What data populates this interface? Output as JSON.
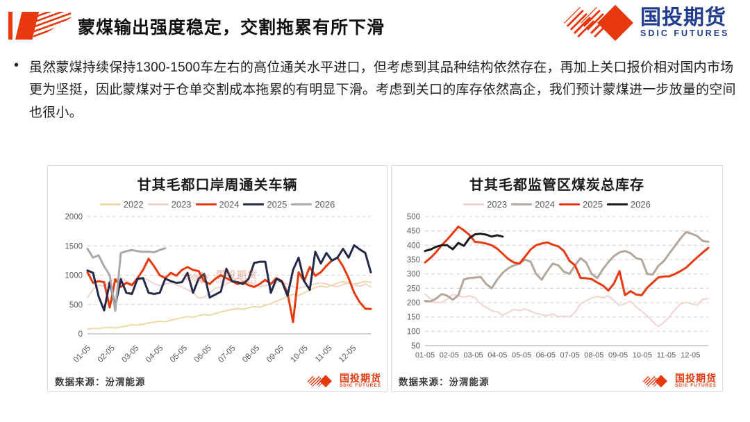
{
  "header": {
    "title": "蒙煤输出强度稳定，交割拖累有所下滑"
  },
  "logo": {
    "name_cn": "国投期货",
    "name_en": "SDIC FUTURES"
  },
  "summary": {
    "bullet": "•",
    "text": "虽然蒙煤持续保持1300-1500车左右的高位通关水平进口，但考虑到其品种结构依然存在，再加上关口报价相对国内市场更为坚挺，因此蒙煤对于仓单交割成本拖累的有明显下滑。考虑到关口的库存依然高企，我们预计蒙煤进一步放量的空间也很小。"
  },
  "colors": {
    "accent_red": "#E8380D",
    "logo_blue": "#223C8F",
    "grid": "#D0D0D0",
    "axis_line": "#A8A8A8",
    "tick_text": "#595959"
  },
  "chart_data": [
    {
      "type": "line",
      "title": "甘其毛都口岸周通关车辆",
      "source": "数据来源：汾渭能源",
      "xlabel": "",
      "ylabel": "",
      "ylim": [
        0,
        2000
      ],
      "yticks": [
        0,
        500,
        1000,
        1500,
        2000
      ],
      "x_labels": [
        "01-05",
        "02-05",
        "03-05",
        "04-05",
        "05-05",
        "06-05",
        "07-05",
        "08-05",
        "09-05",
        "10-05",
        "11-05",
        "12-05"
      ],
      "x_rotate": true,
      "grid": "dashed-horizontal",
      "legend_position": "top",
      "points": 52,
      "series": [
        {
          "name": "2022",
          "color": "#EFD9A3",
          "width": 2,
          "values": [
            80,
            95,
            90,
            105,
            112,
            100,
            120,
            135,
            155,
            148,
            165,
            185,
            200,
            215,
            205,
            232,
            255,
            275,
            295,
            283,
            310,
            330,
            318,
            345,
            375,
            395,
            415,
            432,
            420,
            445,
            465,
            452,
            485,
            515,
            555,
            595,
            635,
            675,
            655,
            700,
            745,
            790,
            815,
            795,
            830,
            865,
            895,
            872,
            845,
            870,
            895,
            878
          ]
        },
        {
          "name": "2023",
          "color": "#F0D3D1",
          "width": 2,
          "values": [
            620,
            760,
            830,
            810,
            890,
            940,
            960,
            900,
            850,
            905,
            950,
            910,
            855,
            825,
            850,
            870,
            835,
            800,
            755,
            705,
            610,
            625,
            700,
            780,
            800,
            850,
            895,
            945,
            915,
            875,
            850,
            805,
            820,
            850,
            895,
            870,
            850,
            805,
            780,
            800,
            820,
            850,
            870,
            850,
            820,
            800,
            845,
            865,
            840,
            810,
            850,
            800
          ]
        },
        {
          "name": "2024",
          "color": "#E8380D",
          "width": 3,
          "values": [
            1050,
            870,
            900,
            880,
            450,
            930,
            800,
            870,
            830,
            950,
            1090,
            1280,
            1150,
            1000,
            950,
            1040,
            990,
            1090,
            1140,
            1090,
            1070,
            900,
            850,
            940,
            1000,
            950,
            900,
            850,
            880,
            830,
            800,
            850,
            920,
            850,
            950,
            900,
            700,
            200,
            1050,
            900,
            1140,
            990,
            1050,
            1160,
            1250,
            1300,
            1150,
            950,
            700,
            540,
            430,
            425
          ]
        },
        {
          "name": "2025",
          "color": "#232949",
          "width": 3,
          "values": [
            1080,
            1040,
            640,
            400,
            880,
            480,
            930,
            700,
            680,
            940,
            950,
            700,
            680,
            700,
            940,
            900,
            870,
            880,
            1040,
            700,
            940,
            1020,
            620,
            670,
            720,
            1110,
            900,
            880,
            850,
            940,
            1210,
            1230,
            1230,
            700,
            940,
            890,
            650,
            1090,
            1300,
            900,
            750,
            1400,
            1200,
            1380,
            1250,
            1300,
            1450,
            1300,
            1510,
            1440,
            1380,
            1050
          ]
        },
        {
          "name": "2026",
          "color": "#A9A9A9",
          "width": 3,
          "values": [
            1450,
            1300,
            1340,
            1150,
            1000,
            390,
            1380,
            1410,
            1430,
            1410,
            1400,
            1400,
            1390,
            1430,
            1460
          ]
        }
      ]
    },
    {
      "type": "line",
      "title": "甘其毛都监管区煤炭总库存",
      "source": "数据来源：汾渭能源",
      "xlabel": "",
      "ylabel": "",
      "ylim": [
        50,
        500
      ],
      "yticks": [
        50,
        100,
        150,
        200,
        250,
        300,
        350,
        400,
        450,
        500
      ],
      "x_labels": [
        "01-05",
        "02-05",
        "03-05",
        "04-05",
        "05-05",
        "06-05",
        "07-05",
        "08-05",
        "09-05",
        "10-05",
        "11-05",
        "12-05"
      ],
      "x_rotate": false,
      "grid": "dashed-horizontal",
      "legend_position": "top",
      "points": 52,
      "series": [
        {
          "name": "2023",
          "color": "#F0D3D1",
          "width": 2,
          "values": [
            230,
            212,
            200,
            201,
            212,
            228,
            224,
            219,
            224,
            217,
            196,
            184,
            172,
            168,
            156,
            166,
            176,
            172,
            178,
            170,
            163,
            158,
            155,
            160,
            151,
            153,
            150,
            166,
            196,
            207,
            216,
            222,
            217,
            224,
            208,
            190,
            196,
            205,
            185,
            170,
            154,
            134,
            116,
            131,
            151,
            176,
            196,
            201,
            196,
            191,
            212,
            214
          ]
        },
        {
          "name": "2024",
          "color": "#B3A79C",
          "width": 3,
          "values": [
            206,
            204,
            214,
            230,
            224,
            210,
            226,
            281,
            286,
            287,
            290,
            265,
            250,
            280,
            304,
            320,
            330,
            336,
            350,
            343,
            300,
            280,
            310,
            336,
            330,
            308,
            300,
            330,
            355,
            340,
            300,
            286,
            316,
            341,
            362,
            375,
            380,
            372,
            355,
            350,
            300,
            298,
            328,
            345,
            372,
            398,
            424,
            446,
            440,
            432,
            415,
            412
          ]
        },
        {
          "name": "2025",
          "color": "#E8380D",
          "width": 3,
          "values": [
            340,
            356,
            376,
            400,
            420,
            442,
            465,
            452,
            436,
            412,
            410,
            406,
            400,
            388,
            370,
            352,
            340,
            336,
            360,
            385,
            400,
            406,
            410,
            402,
            396,
            380,
            346,
            330,
            286,
            285,
            282,
            270,
            260,
            242,
            266,
            310,
            226,
            240,
            228,
            226,
            252,
            270,
            288,
            291,
            292,
            300,
            310,
            322,
            340,
            358,
            375,
            391
          ]
        },
        {
          "name": "2026",
          "color": "#1A1A1A",
          "width": 3,
          "values": [
            380,
            385,
            395,
            400,
            400,
            386,
            408,
            398,
            425,
            438,
            440,
            437,
            430,
            435,
            430
          ]
        }
      ]
    }
  ]
}
